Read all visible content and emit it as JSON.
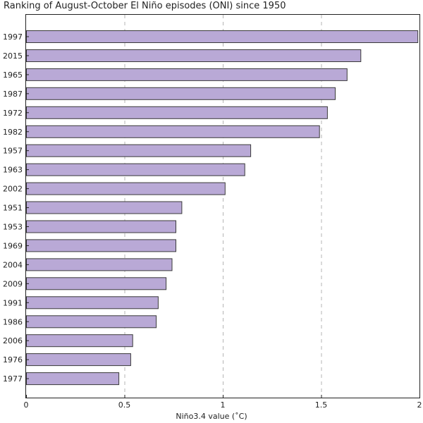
{
  "chart_data": {
    "type": "bar",
    "orientation": "horizontal",
    "title": "Ranking of August-October El Niño episodes (ONI) since 1950",
    "xlabel": "Niño3.4 value (˚C)",
    "ylabel": "",
    "categories": [
      "1997",
      "2015",
      "1965",
      "1987",
      "1972",
      "1982",
      "1957",
      "1963",
      "2002",
      "1951",
      "1953",
      "1969",
      "2004",
      "2009",
      "1991",
      "1986",
      "2006",
      "1976",
      "1977"
    ],
    "values": [
      1.99,
      1.7,
      1.63,
      1.57,
      1.53,
      1.49,
      1.14,
      1.11,
      1.01,
      0.79,
      0.76,
      0.76,
      0.74,
      0.71,
      0.67,
      0.66,
      0.54,
      0.53,
      0.47
    ],
    "xlim": [
      0,
      2
    ],
    "xticks": [
      "0",
      "0.5",
      "1",
      "1.5",
      "2"
    ],
    "grid": "vertical dashed at 0.5, 1, 1.5",
    "bar_color": "#b9a9d6",
    "bar_edge_color": "#3a3a3a"
  }
}
